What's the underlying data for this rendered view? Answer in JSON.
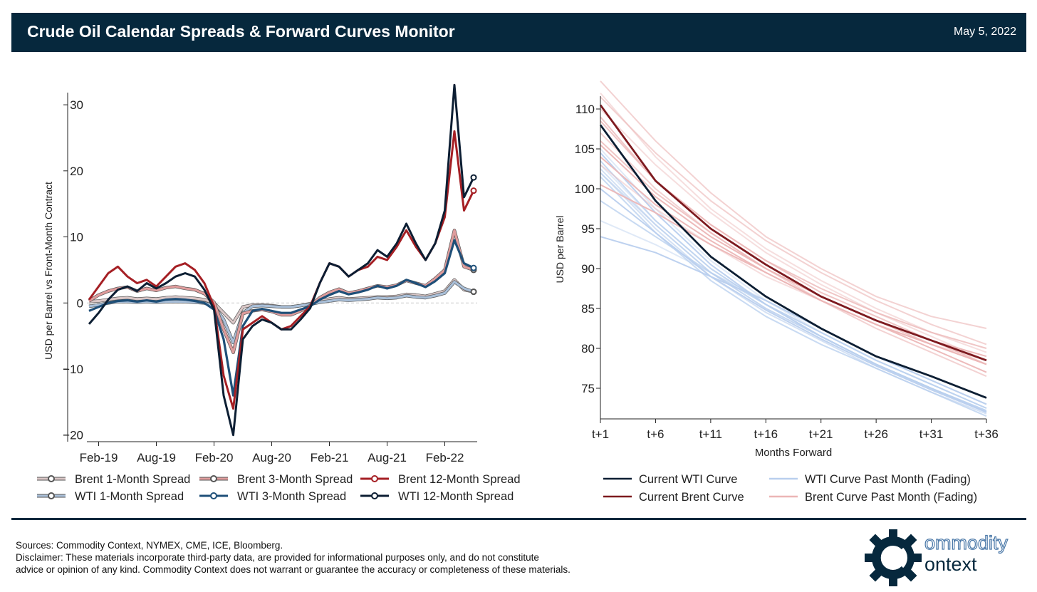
{
  "header": {
    "title": "Crude Oil Calendar Spreads & Forward Curves Monitor",
    "date": "May 5, 2022"
  },
  "colors": {
    "header_bg": "#06283d",
    "brent_1m": "#d9c6c6",
    "brent_3m": "#df9c9c",
    "brent_12m": "#a51f24",
    "wti_1m": "#a9bfd8",
    "wti_3m": "#1e4f78",
    "wti_12m": "#0c1e33",
    "current_wti": "#0c1e33",
    "current_brent": "#7d1a1f",
    "wti_fading": "#b9cfee",
    "brent_fading": "#ecb6b6"
  },
  "chart_data": [
    {
      "type": "line",
      "ylabel": "USD per Barrel vs Front-Month Contract",
      "xlabel": "",
      "x_tick_labels": [
        "Feb-19",
        "Aug-19",
        "Feb-20",
        "Aug-20",
        "Feb-21",
        "Aug-21",
        "Feb-22"
      ],
      "y_ticks": [
        -20,
        -10,
        0,
        10,
        20,
        30
      ],
      "ylim": [
        -21,
        34
      ],
      "grid": false,
      "legend_position": "bottom",
      "x": [
        "2019-01",
        "2019-02",
        "2019-03",
        "2019-04",
        "2019-05",
        "2019-06",
        "2019-07",
        "2019-08",
        "2019-09",
        "2019-10",
        "2019-11",
        "2019-12",
        "2020-01",
        "2020-02",
        "2020-03",
        "2020-04",
        "2020-05",
        "2020-06",
        "2020-07",
        "2020-08",
        "2020-09",
        "2020-10",
        "2020-11",
        "2020-12",
        "2021-01",
        "2021-02",
        "2021-03",
        "2021-04",
        "2021-05",
        "2021-06",
        "2021-07",
        "2021-08",
        "2021-09",
        "2021-10",
        "2021-11",
        "2021-12",
        "2022-01",
        "2022-02",
        "2022-03",
        "2022-04",
        "2022-05"
      ],
      "series": [
        {
          "name": "Brent 1-Month Spread",
          "values": [
            0.2,
            0.3,
            0.5,
            0.7,
            0.8,
            0.6,
            0.7,
            0.6,
            0.8,
            0.9,
            0.8,
            0.7,
            0.5,
            0.0,
            -1.5,
            -3.0,
            -0.6,
            -0.3,
            -0.3,
            -0.4,
            -0.6,
            -0.6,
            -0.4,
            -0.1,
            0.3,
            0.6,
            0.8,
            0.6,
            0.7,
            0.8,
            0.9,
            0.9,
            1.0,
            1.3,
            1.2,
            1.0,
            1.4,
            1.8,
            3.5,
            2.0,
            1.7
          ]
        },
        {
          "name": "Brent 3-Month Spread",
          "values": [
            0.3,
            1.2,
            1.8,
            2.2,
            2.4,
            1.8,
            2.2,
            1.9,
            2.3,
            2.5,
            2.2,
            2.0,
            1.4,
            0.1,
            -4.0,
            -7.5,
            -1.6,
            -1.2,
            -1.0,
            -1.3,
            -1.8,
            -1.8,
            -1.2,
            -0.4,
            0.8,
            1.6,
            2.1,
            1.5,
            1.8,
            2.2,
            2.6,
            2.4,
            2.7,
            3.4,
            3.0,
            2.6,
            3.7,
            5.0,
            11.0,
            5.5,
            5.0
          ]
        },
        {
          "name": "Brent 12-Month Spread",
          "values": [
            0.5,
            2.5,
            4.5,
            5.5,
            4.0,
            3.0,
            3.5,
            2.5,
            4.0,
            5.5,
            6.0,
            5.0,
            3.0,
            -0.5,
            -11.0,
            -16.0,
            -4.0,
            -3.0,
            -2.0,
            -3.0,
            -4.0,
            -3.5,
            -2.0,
            -0.5,
            3.0,
            6.0,
            5.5,
            4.0,
            5.0,
            5.5,
            7.0,
            6.5,
            8.5,
            11.0,
            8.5,
            6.5,
            9.0,
            13.0,
            26.0,
            14.0,
            17.0
          ]
        },
        {
          "name": "WTI 1-Month Spread",
          "values": [
            -0.5,
            -0.3,
            0.0,
            0.2,
            0.2,
            0.1,
            0.2,
            0.1,
            0.2,
            0.2,
            0.2,
            0.1,
            0.0,
            -0.5,
            -2.5,
            -6.0,
            -1.5,
            -0.5,
            -0.4,
            -0.5,
            -0.6,
            -0.6,
            -0.4,
            -0.2,
            0.1,
            0.3,
            0.5,
            0.4,
            0.5,
            0.6,
            0.8,
            0.7,
            0.8,
            1.1,
            0.9,
            0.8,
            1.1,
            1.5,
            3.2,
            2.2,
            1.7
          ]
        },
        {
          "name": "WTI 3-Month Spread",
          "values": [
            -1.2,
            -0.6,
            0.0,
            0.3,
            0.4,
            0.2,
            0.4,
            0.2,
            0.5,
            0.6,
            0.5,
            0.3,
            0.0,
            -1.0,
            -5.5,
            -14.0,
            -3.5,
            -1.2,
            -0.9,
            -1.2,
            -1.5,
            -1.5,
            -1.0,
            -0.5,
            0.5,
            1.2,
            1.8,
            1.3,
            1.6,
            2.0,
            2.6,
            2.2,
            2.6,
            3.5,
            3.0,
            2.4,
            3.3,
            4.5,
            9.5,
            6.0,
            5.3
          ]
        },
        {
          "name": "WTI 12-Month Spread",
          "values": [
            -3.2,
            -1.5,
            0.5,
            2.0,
            2.5,
            1.8,
            3.0,
            2.2,
            3.0,
            4.0,
            4.5,
            4.0,
            2.0,
            -1.0,
            -14.0,
            -20.0,
            -5.5,
            -3.5,
            -2.5,
            -3.0,
            -4.0,
            -4.0,
            -2.5,
            -0.8,
            3.0,
            6.0,
            5.5,
            4.0,
            5.0,
            6.0,
            8.0,
            7.0,
            9.0,
            12.0,
            9.0,
            6.5,
            9.0,
            14.0,
            33.0,
            16.0,
            19.0
          ]
        }
      ]
    },
    {
      "type": "line",
      "ylabel": "USD per Barrel",
      "xlabel": "Months Forward",
      "x_tick_labels": [
        "t+1",
        "t+6",
        "t+11",
        "t+16",
        "t+21",
        "t+26",
        "t+31",
        "t+36"
      ],
      "y_ticks": [
        75,
        80,
        85,
        90,
        95,
        100,
        105,
        110
      ],
      "ylim": [
        71,
        114
      ],
      "grid": false,
      "legend_position": "bottom",
      "x": [
        1,
        6,
        11,
        16,
        21,
        26,
        31,
        36
      ],
      "series": [
        {
          "name": "Current WTI Curve",
          "values": [
            108.0,
            98.5,
            91.5,
            86.5,
            82.5,
            79.0,
            76.5,
            73.8
          ]
        },
        {
          "name": "Current Brent Curve",
          "values": [
            110.5,
            101.0,
            95.0,
            90.5,
            86.5,
            83.5,
            81.0,
            78.5
          ]
        },
        {
          "name": "WTI Curve Past Month (Fading)",
          "curves": [
            [
              103.0,
              96.0,
              90.0,
              85.5,
              82.0,
              78.5,
              75.5,
              72.5
            ],
            [
              102.5,
              95.5,
              89.5,
              85.0,
              81.5,
              78.0,
              75.0,
              72.0
            ],
            [
              101.5,
              94.5,
              88.5,
              84.0,
              80.5,
              77.5,
              74.5,
              71.5
            ],
            [
              104.5,
              97.0,
              90.5,
              85.5,
              81.5,
              78.0,
              75.0,
              72.0
            ],
            [
              105.0,
              97.5,
              91.0,
              86.0,
              82.0,
              78.5,
              75.5,
              72.5
            ],
            [
              102.0,
              95.0,
              89.0,
              84.5,
              81.0,
              77.5,
              74.5,
              71.8
            ],
            [
              98.5,
              94.0,
              89.5,
              85.5,
              82.0,
              78.5,
              75.5,
              72.5
            ],
            [
              94.0,
              92.0,
              89.0,
              86.0,
              82.5,
              79.0,
              76.0,
              73.0
            ],
            [
              96.0,
              93.0,
              89.5,
              86.0,
              82.5,
              79.0,
              76.0,
              73.0
            ],
            [
              102.0,
              95.5,
              89.5,
              85.0,
              81.5,
              78.0,
              75.0,
              72.2
            ],
            [
              103.5,
              96.0,
              90.0,
              85.5,
              81.5,
              78.0,
              75.0,
              72.2
            ],
            [
              100.0,
              94.5,
              89.0,
              84.8,
              81.2,
              77.8,
              74.8,
              72.0
            ]
          ]
        },
        {
          "name": "Brent Curve Past Month (Fading)",
          "curves": [
            [
              112.0,
              104.0,
              97.5,
              92.5,
              88.5,
              85.0,
              82.0,
              79.5
            ],
            [
              113.5,
              106.0,
              99.5,
              94.0,
              90.0,
              86.5,
              84.0,
              82.5
            ],
            [
              109.0,
              101.0,
              95.5,
              91.0,
              87.5,
              84.5,
              82.0,
              80.0
            ],
            [
              105.5,
              99.0,
              94.0,
              90.0,
              86.5,
              83.5,
              81.0,
              79.0
            ],
            [
              103.0,
              97.5,
              93.0,
              89.0,
              86.0,
              83.0,
              80.5,
              78.5
            ],
            [
              107.0,
              100.0,
              94.5,
              90.0,
              86.0,
              82.5,
              79.5,
              76.5
            ],
            [
              108.5,
              101.0,
              95.5,
              91.0,
              87.0,
              84.0,
              81.0,
              78.0
            ],
            [
              104.0,
              98.0,
              93.5,
              89.5,
              86.0,
              83.0,
              80.0,
              77.0
            ],
            [
              110.0,
              103.0,
              97.0,
              92.0,
              88.0,
              84.5,
              81.5,
              78.5
            ],
            [
              111.5,
              104.5,
              98.5,
              93.5,
              89.5,
              86.0,
              83.0,
              80.5
            ],
            [
              106.0,
              99.5,
              94.5,
              90.0,
              86.5,
              83.5,
              80.5,
              78.0
            ],
            [
              100.5,
              97.0,
              93.0,
              89.5,
              86.0,
              83.0,
              80.5,
              78.0
            ]
          ]
        }
      ]
    }
  ],
  "legend_left": [
    [
      "Brent 1-Month Spread",
      "Brent 3-Month Spread",
      "Brent 12-Month Spread"
    ],
    [
      "WTI 1-Month Spread",
      "WTI 3-Month Spread",
      "WTI 12-Month Spread"
    ]
  ],
  "legend_right": [
    [
      "Current WTI Curve",
      "WTI Curve Past Month (Fading)"
    ],
    [
      "Current Brent Curve",
      "Brent Curve Past Month (Fading)"
    ]
  ],
  "footer": {
    "sources": "Sources: Commodity Context, NYMEX, CME, ICE, Bloomberg.",
    "disclaimer_1": "Disclaimer: These materials incorporate third-party data, are provided for informational purposes only, and do not constitute",
    "disclaimer_2": "advice or opinion of any kind. Commodity Context does not warrant or guarantee the accuracy or completeness of these materials."
  },
  "logo": {
    "line1": "ommodity",
    "line2": "ontext"
  }
}
